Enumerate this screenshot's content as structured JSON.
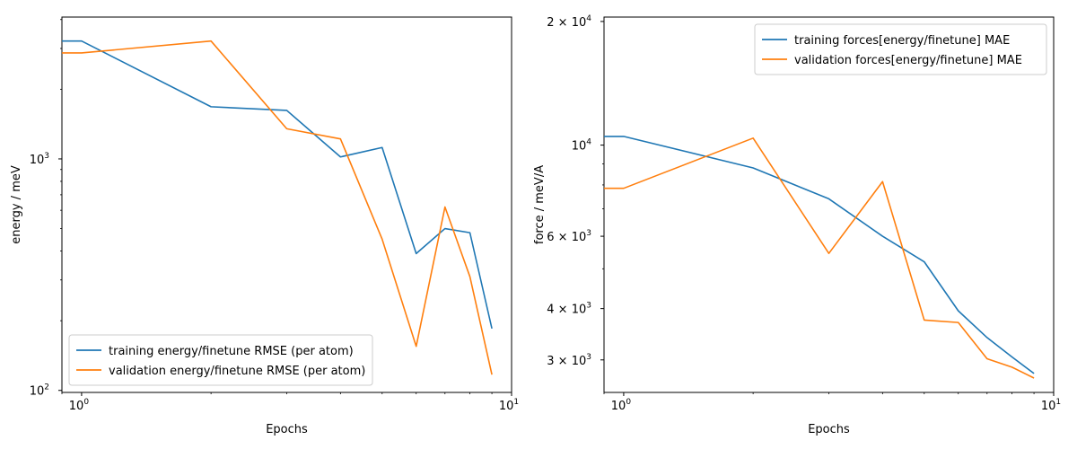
{
  "chart_data": [
    {
      "type": "line",
      "xscale": "log",
      "yscale": "log",
      "xlim": [
        0.9,
        10
      ],
      "ylim": [
        98,
        4100
      ],
      "xlabel": "Epochs",
      "ylabel": "energy / meV",
      "xticks": [
        {
          "value": 1,
          "label": "10",
          "exp": "0"
        },
        {
          "value": 10,
          "label": "10",
          "exp": "1"
        }
      ],
      "yticks": [
        {
          "value": 100,
          "label": "10",
          "exp": "2"
        },
        {
          "value": 1000,
          "label": "10",
          "exp": "3"
        }
      ],
      "x": [
        0.9,
        1,
        2,
        3,
        4,
        5,
        6,
        7,
        8,
        9
      ],
      "series": [
        {
          "name": "training energy/finetune RMSE (per atom)",
          "color": "#1f77b4",
          "values": [
            3230,
            3230,
            1680,
            1620,
            1020,
            1120,
            390,
            500,
            480,
            185
          ]
        },
        {
          "name": "validation energy/finetune RMSE (per atom)",
          "color": "#ff7f0e",
          "values": [
            2870,
            2870,
            3230,
            1350,
            1220,
            450,
            155,
            620,
            310,
            117
          ]
        }
      ],
      "legend": "lower-left"
    },
    {
      "type": "line",
      "xscale": "log",
      "yscale": "log",
      "xlim": [
        0.9,
        10
      ],
      "ylim": [
        2500,
        20500
      ],
      "xlabel": "Epochs",
      "ylabel": "force / meV/A",
      "xticks": [
        {
          "value": 1,
          "label": "10",
          "exp": "0"
        },
        {
          "value": 10,
          "label": "10",
          "exp": "1"
        }
      ],
      "yticks": [
        {
          "value": 20000,
          "label": "2 × 10",
          "exp": "4"
        },
        {
          "value": 10000,
          "label": "10",
          "exp": "4"
        },
        {
          "value": 6000,
          "label": "6 × 10",
          "exp": "3"
        },
        {
          "value": 4000,
          "label": "4 × 10",
          "exp": "3"
        },
        {
          "value": 3000,
          "label": "3 × 10",
          "exp": "3"
        }
      ],
      "x": [
        0.9,
        1,
        2,
        3,
        4,
        5,
        6,
        7,
        8,
        9
      ],
      "series": [
        {
          "name": "training forces[energy/finetune] MAE",
          "color": "#1f77b4",
          "values": [
            10500,
            10500,
            8800,
            7400,
            6000,
            5200,
            3950,
            3400,
            3050,
            2780
          ]
        },
        {
          "name": "validation forces[energy/finetune] MAE",
          "color": "#ff7f0e",
          "values": [
            7850,
            7850,
            10400,
            5450,
            8150,
            3750,
            3700,
            3020,
            2880,
            2710
          ]
        }
      ],
      "legend": "upper-right"
    }
  ]
}
